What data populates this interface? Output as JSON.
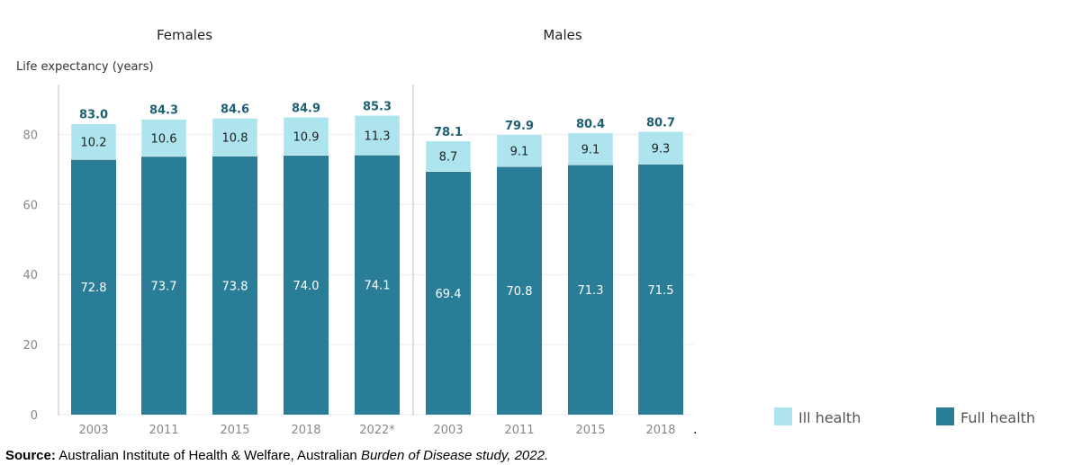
{
  "chart_data": {
    "type": "bar",
    "stacked": true,
    "ylabel": "Life expectancy (years)",
    "ylim": [
      0,
      92
    ],
    "yticks": [
      0,
      20,
      40,
      60,
      80
    ],
    "grid": true,
    "legend_position": "bottom-right",
    "colors": {
      "Ill health": "#ade4ee",
      "Full health": "#2a7d96",
      "total": "#1f5f73"
    },
    "panels": [
      {
        "title": "Females",
        "categories": [
          "2003",
          "2011",
          "2015",
          "2018",
          "2022*"
        ],
        "series": [
          {
            "name": "Full health",
            "values": [
              72.8,
              73.7,
              73.8,
              74.0,
              74.1
            ]
          },
          {
            "name": "Ill health",
            "values": [
              10.2,
              10.6,
              10.8,
              10.9,
              11.3
            ]
          }
        ],
        "totals": [
          "83.0",
          "84.3",
          "84.6",
          "84.9",
          "85.3"
        ],
        "full_labels": [
          "72.8",
          "73.7",
          "73.8",
          "74.0",
          "74.1"
        ],
        "ill_labels": [
          "10.2",
          "10.6",
          "10.8",
          "10.9",
          "11.3"
        ]
      },
      {
        "title": "Males",
        "categories": [
          "2003",
          "2011",
          "2015",
          "2018"
        ],
        "series": [
          {
            "name": "Full health",
            "values": [
              69.4,
              70.8,
              71.3,
              71.5
            ]
          },
          {
            "name": "Ill health",
            "values": [
              8.7,
              9.1,
              9.1,
              9.3
            ]
          }
        ],
        "totals": [
          "78.1",
          "79.9",
          "80.4",
          "80.7"
        ],
        "full_labels": [
          "69.4",
          "70.8",
          "71.3",
          "71.5"
        ],
        "ill_labels": [
          "8.7",
          "9.1",
          "9.1",
          "9.3"
        ]
      }
    ],
    "legend": [
      "Ill health",
      "Full health"
    ]
  },
  "source": {
    "bold": "Source:",
    "text": " Australian Institute of Health & Welfare, Australian ",
    "italic": "Burden of Disease study, 2022."
  },
  "stray_mark": "."
}
